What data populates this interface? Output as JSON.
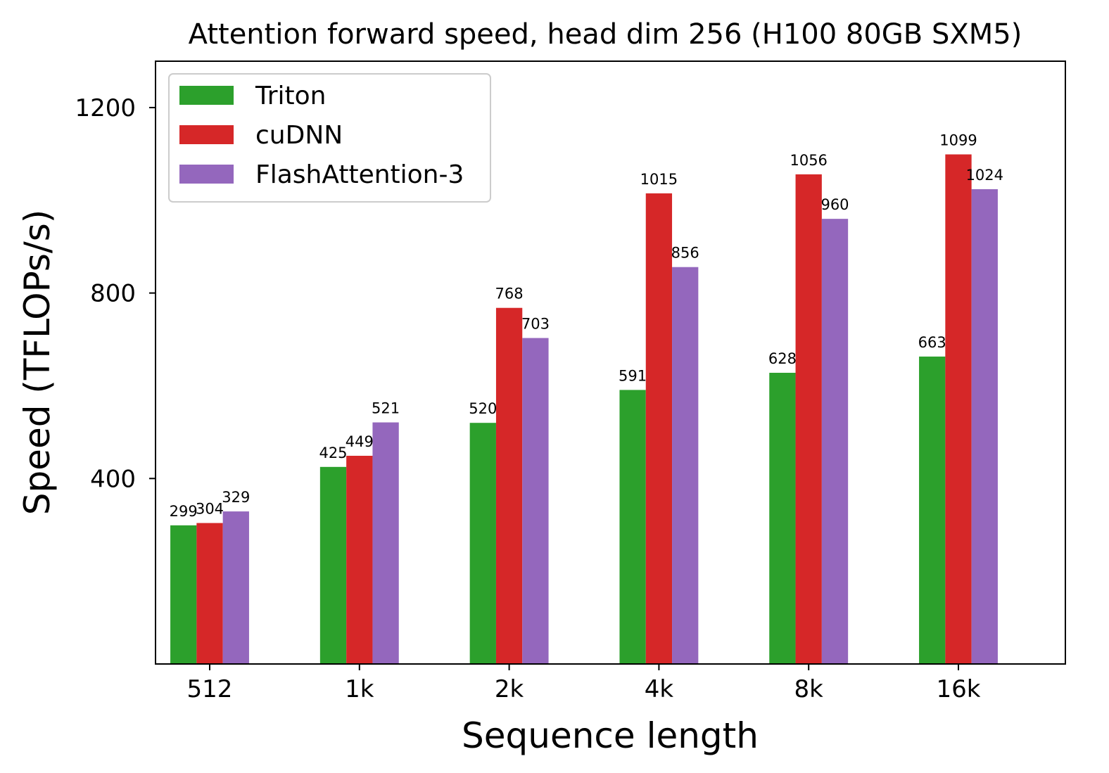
{
  "chart_data": {
    "type": "bar",
    "title": "Attention forward speed, head dim 256 (H100 80GB SXM5)",
    "xlabel": "Sequence length",
    "ylabel": "Speed (TFLOPs/s)",
    "categories": [
      "512",
      "1k",
      "2k",
      "4k",
      "8k",
      "16k"
    ],
    "series": [
      {
        "name": "Triton",
        "color": "#2ca02c",
        "values": [
          299,
          425,
          520,
          591,
          628,
          663
        ]
      },
      {
        "name": "cuDNN",
        "color": "#d62728",
        "values": [
          304,
          449,
          768,
          1015,
          1056,
          1099
        ]
      },
      {
        "name": "FlashAttention-3",
        "color": "#9467bd",
        "values": [
          329,
          521,
          703,
          856,
          960,
          1024
        ]
      }
    ],
    "yticks": [
      400,
      800,
      1200
    ],
    "ylim": [
      0,
      1300
    ],
    "grid": false,
    "legend_position": "top-left"
  }
}
